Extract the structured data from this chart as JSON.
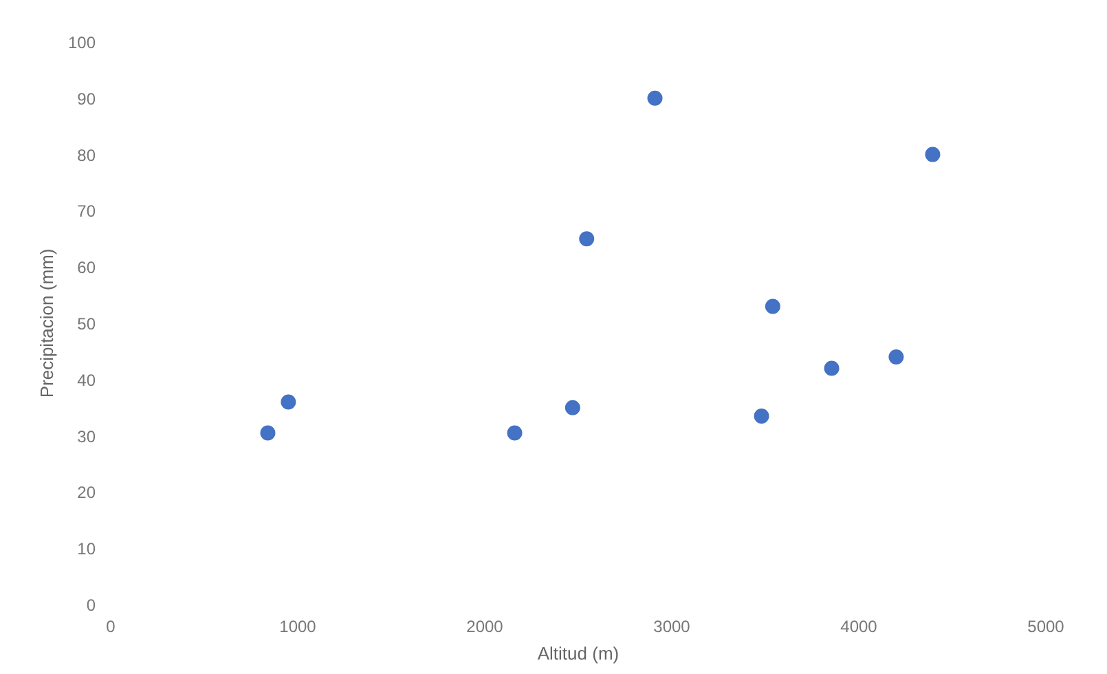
{
  "chart_data": {
    "type": "scatter",
    "xlabel": "Altitud (m)",
    "ylabel": "Precipitacion (mm)",
    "x": [
      840,
      950,
      2160,
      2470,
      2545,
      2910,
      3480,
      3540,
      3855,
      4200,
      4395
    ],
    "series": [
      {
        "color": "#4472c4",
        "values": [
          30.5,
          36,
          30.5,
          35,
          65,
          90,
          33.5,
          53,
          42,
          44,
          80
        ]
      }
    ],
    "xlim": [
      0,
      5000
    ],
    "xticks": [
      0,
      1000,
      2000,
      3000,
      4000,
      5000
    ],
    "ylim": [
      0,
      100
    ],
    "yticks": [
      0,
      10,
      20,
      30,
      40,
      50,
      60,
      70,
      80,
      90,
      100
    ],
    "marker": "circle"
  }
}
